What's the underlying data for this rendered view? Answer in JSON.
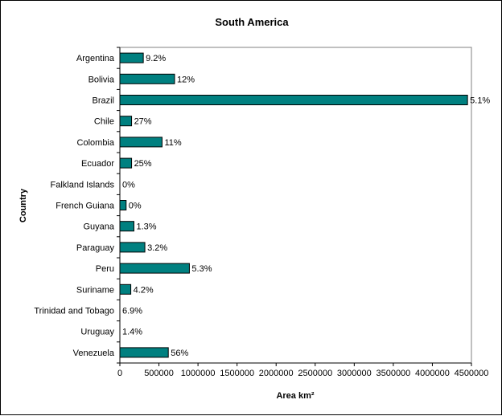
{
  "chart_data": {
    "type": "bar",
    "orientation": "horizontal",
    "title": "South America",
    "xlabel": "Area km²",
    "ylabel": "Country",
    "xlim": [
      0,
      4500000
    ],
    "xticks": [
      0,
      500000,
      1000000,
      1500000,
      2000000,
      2500000,
      3000000,
      3500000,
      4000000,
      4500000
    ],
    "grid": false,
    "legend": "none",
    "bar_color": "#008080",
    "categories": [
      "Argentina",
      "Bolivia",
      "Brazil",
      "Chile",
      "Colombia",
      "Ecuador",
      "Falkland Islands",
      "French Guiana",
      "Guyana",
      "Paraguay",
      "Peru",
      "Suriname",
      "Trinidad and Tobago",
      "Uruguay",
      "Venezuela"
    ],
    "values": [
      300000,
      700000,
      4450000,
      150000,
      540000,
      150000,
      0,
      80000,
      180000,
      320000,
      890000,
      140000,
      0,
      0,
      620000
    ],
    "data_labels": [
      "9.2%",
      "12%",
      "5.1%",
      "27%",
      "11%",
      "25%",
      "0%",
      "0%",
      "1.3%",
      "3.2%",
      "5.3%",
      "4.2%",
      "6.9%",
      "1.4%",
      "56%"
    ]
  }
}
